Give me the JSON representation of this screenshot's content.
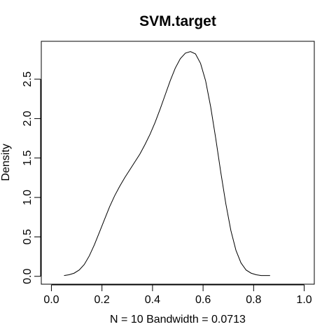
{
  "chart_data": {
    "type": "line",
    "title": "SVM.target",
    "xlabel": "N = 10   Bandwidth = 0.0713",
    "ylabel": "Density",
    "xlim": [
      -0.04,
      1.04
    ],
    "ylim": [
      -0.1,
      2.98
    ],
    "grid": false,
    "x_ticks": [
      0.0,
      0.2,
      0.4,
      0.6,
      0.8,
      1.0
    ],
    "x_tick_labels": [
      "0.0",
      "0.2",
      "0.4",
      "0.6",
      "0.8",
      "1.0"
    ],
    "y_ticks": [
      0.0,
      0.5,
      1.0,
      1.5,
      2.0,
      2.5
    ],
    "y_tick_labels": [
      "0.0",
      "0.5",
      "1.0",
      "1.5",
      "2.0",
      "2.5"
    ],
    "series": [
      {
        "x": [
          0.05,
          0.07,
          0.09,
          0.11,
          0.13,
          0.15,
          0.17,
          0.19,
          0.21,
          0.23,
          0.25,
          0.27,
          0.29,
          0.31,
          0.33,
          0.35,
          0.37,
          0.39,
          0.41,
          0.43,
          0.45,
          0.47,
          0.49,
          0.51,
          0.53,
          0.55,
          0.57,
          0.59,
          0.61,
          0.63,
          0.65,
          0.67,
          0.69,
          0.71,
          0.73,
          0.75,
          0.77,
          0.79,
          0.81,
          0.83,
          0.85,
          0.865
        ],
        "y": [
          0.01,
          0.02,
          0.04,
          0.08,
          0.15,
          0.26,
          0.4,
          0.56,
          0.72,
          0.88,
          1.02,
          1.14,
          1.25,
          1.35,
          1.45,
          1.55,
          1.67,
          1.8,
          1.95,
          2.12,
          2.3,
          2.48,
          2.64,
          2.76,
          2.83,
          2.85,
          2.82,
          2.7,
          2.48,
          2.15,
          1.75,
          1.32,
          0.92,
          0.58,
          0.33,
          0.17,
          0.08,
          0.04,
          0.02,
          0.01,
          0.01,
          0.01
        ]
      }
    ]
  }
}
